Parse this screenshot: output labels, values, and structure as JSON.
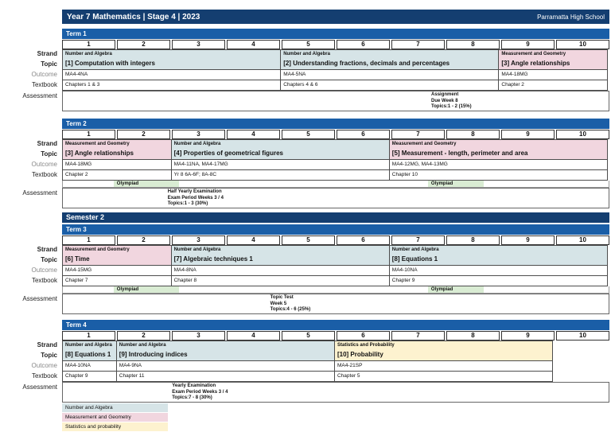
{
  "header": {
    "title": "Year 7 Mathematics | Stage 4 | 2023",
    "school": "Parramatta High School"
  },
  "row_labels": {
    "strand": "Strand",
    "topic": "Topic",
    "outcome": "Outcome",
    "textbook": "Textbook",
    "assessment": "Assessment"
  },
  "week_numbers": [
    "1",
    "2",
    "3",
    "4",
    "5",
    "6",
    "7",
    "8",
    "9",
    "10"
  ],
  "semester2_label": "Semester 2",
  "colors": {
    "navy": "#143e70",
    "term_blue": "#1a5ea7",
    "na": "#d6e4e7",
    "mg": "#f1d6df",
    "sp": "#fdf2cf",
    "olympiad": "#d9ecd3"
  },
  "olympiad_label": "Olympiad",
  "terms": [
    {
      "label": "Term 1",
      "semester_break_before": false,
      "blocks": [
        {
          "strand_key": "na",
          "strand": "Number and Algebra",
          "topic": "[1] Computation with integers",
          "outcome": "MA4-4NA",
          "textbook": "Chapters 1 & 3",
          "weeks": 4
        },
        {
          "strand_key": "na",
          "strand": "Number and Algebra",
          "topic": "[2] Understanding fractions, decimals and percentages",
          "outcome": "MA4-5NA",
          "textbook": "Chapters 4 & 6",
          "weeks": 4
        },
        {
          "strand_key": "mg",
          "strand": "Measurement and Geometry",
          "topic": "[3] Angle relationships",
          "outcome": "MA4-18MG",
          "textbook": "Chapter 2",
          "weeks": 2
        }
      ],
      "olympiad": [],
      "assessment": {
        "lines": [
          "Assignment",
          "Due Week 8",
          "Topics:1 - 2 (15%)"
        ],
        "left_pct": 67.5
      }
    },
    {
      "label": "Term 2",
      "semester_break_before": false,
      "blocks": [
        {
          "strand_key": "mg",
          "strand": "Measurement and Geometry",
          "topic": "[3] Angle relationships",
          "outcome": "MA4-18MG",
          "textbook": "Chapter 2",
          "weeks": 2
        },
        {
          "strand_key": "na",
          "strand": "Number and Algebra",
          "topic": "[4] Properties of geometrical figures",
          "outcome": "MA4-11NA, MA4-17MG",
          "textbook": "Yr 8 6A-6F; 8A-8C",
          "weeks": 4
        },
        {
          "strand_key": "mg",
          "strand": "Measurement and Geometry",
          "topic": "[5] Measurement - length, perimeter and area",
          "outcome": "MA4-12MG, MA4-13MG",
          "textbook": "Chapter 10",
          "weeks": 4
        }
      ],
      "olympiad": [
        {
          "left_pct": 9.3,
          "width_pct": 12
        },
        {
          "left_pct": 66.9,
          "width_pct": 10.2
        }
      ],
      "assessment": {
        "lines": [
          "Half Yearly Examination",
          "Exam Period Weeks 3 / 4",
          "Topics:1 - 3 (30%)"
        ],
        "left_pct": 19.2
      }
    },
    {
      "label": "Term 3",
      "semester_break_before": true,
      "blocks": [
        {
          "strand_key": "mg",
          "strand": "Measurement and Geometry",
          "topic": "[6] Time",
          "outcome": "MA4-15MG",
          "textbook": "Chapter 7",
          "weeks": 2
        },
        {
          "strand_key": "na",
          "strand": "Number and Algebra",
          "topic": "[7] Algebraic techniques 1",
          "outcome": "MA4-8NA",
          "textbook": "Chapter 8",
          "weeks": 4
        },
        {
          "strand_key": "na",
          "strand": "Number and Algebra",
          "topic": "[8] Equations 1",
          "outcome": "MA4-10NA",
          "textbook": "Chapter 9",
          "weeks": 4
        }
      ],
      "olympiad": [
        {
          "left_pct": 9.3,
          "width_pct": 12
        },
        {
          "left_pct": 66.9,
          "width_pct": 10.2
        }
      ],
      "assessment": {
        "lines": [
          "Topic Test",
          "Week 5",
          "Topics:4 - 6 (25%)"
        ],
        "left_pct": 38
      }
    },
    {
      "label": "Term 4",
      "semester_break_before": false,
      "blocks": [
        {
          "strand_key": "na",
          "strand": "Number and Algebra",
          "topic": "[8] Equations 1",
          "outcome": "MA4-10NA",
          "textbook": "Chapter 9",
          "weeks": 1
        },
        {
          "strand_key": "na",
          "strand": "Number and Algebra",
          "topic": "[9] Introducing indices",
          "outcome": "MA4-9NA",
          "textbook": "Chapter 11",
          "weeks": 4
        },
        {
          "strand_key": "sp",
          "strand": "Statistics and Probability",
          "topic": "[10] Probability",
          "outcome": "MA4-21SP",
          "textbook": "Chapter 5",
          "weeks": 4
        },
        {
          "empty": true,
          "weeks": 1
        }
      ],
      "olympiad": [],
      "assessment": {
        "lines": [
          "Yearly Examination",
          "Exam Period Weeks 3 / 4",
          "Topics:7 - 8 (30%)"
        ],
        "left_pct": 20
      }
    }
  ],
  "legend": [
    {
      "key": "na",
      "label": "Number and Algebra"
    },
    {
      "key": "mg",
      "label": "Measurement and Geometry"
    },
    {
      "key": "sp",
      "label": "Statistics and probability"
    }
  ]
}
